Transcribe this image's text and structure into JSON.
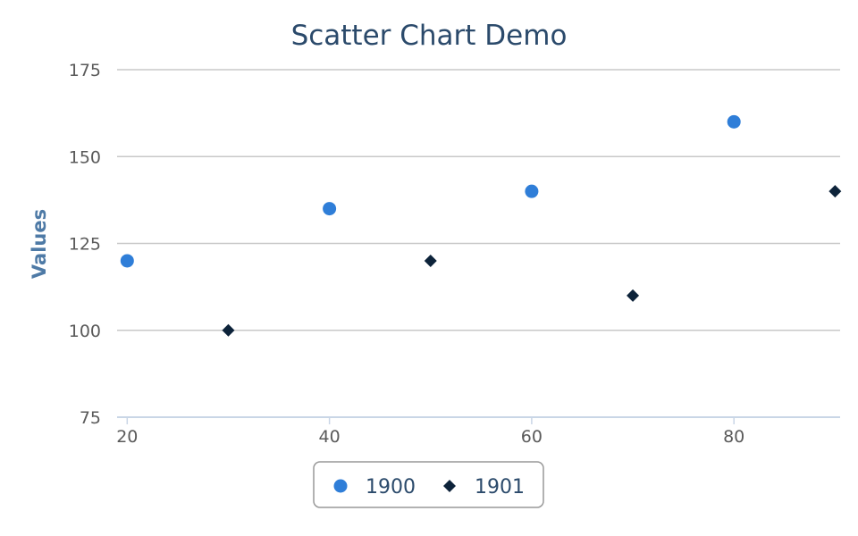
{
  "chart_data": {
    "type": "scatter",
    "title": "Scatter Chart Demo",
    "xlabel": "",
    "ylabel": "Values",
    "xlim": [
      19,
      90.5
    ],
    "ylim": [
      75,
      175
    ],
    "xticks": [
      20,
      40,
      60,
      80
    ],
    "yticks": [
      75,
      100,
      125,
      150,
      175
    ],
    "grid": true,
    "legend_position": "bottom-center",
    "series": [
      {
        "name": "1900",
        "marker": "circle",
        "color": "#2f7ed8",
        "points": [
          {
            "x": 20,
            "y": 120
          },
          {
            "x": 40,
            "y": 135
          },
          {
            "x": 60,
            "y": 140
          },
          {
            "x": 80,
            "y": 160
          }
        ]
      },
      {
        "name": "1901",
        "marker": "diamond",
        "color": "#0d233a",
        "points": [
          {
            "x": 30,
            "y": 100
          },
          {
            "x": 50,
            "y": 120
          },
          {
            "x": 70,
            "y": 110
          },
          {
            "x": 90,
            "y": 140
          }
        ]
      }
    ]
  }
}
